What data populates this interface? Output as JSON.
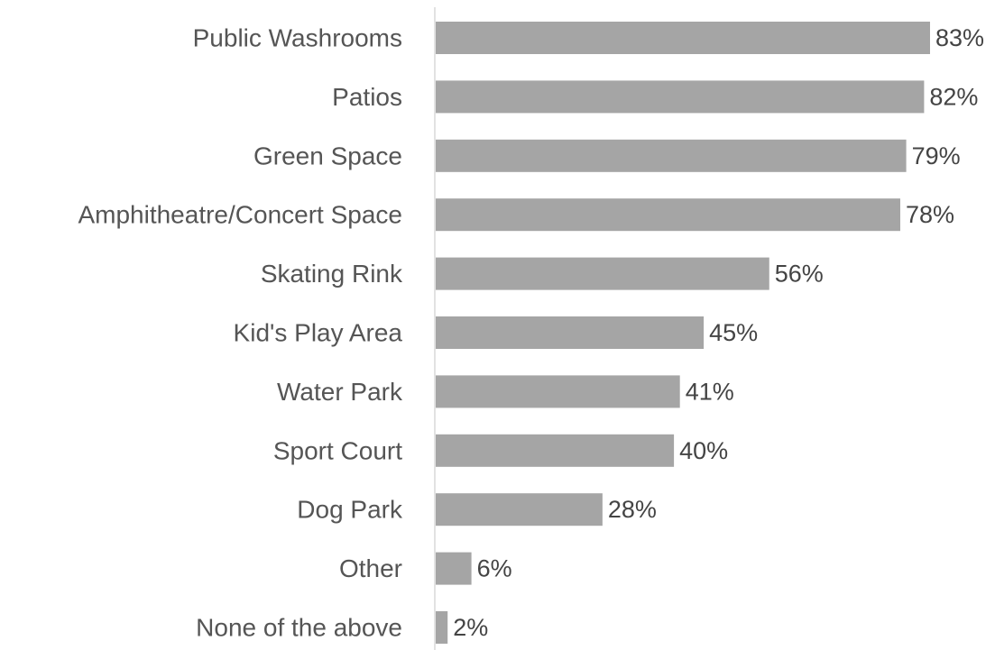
{
  "chart_data": {
    "type": "bar",
    "orientation": "horizontal",
    "title": "",
    "xlabel": "",
    "ylabel": "",
    "categories": [
      "Public Washrooms",
      "Patios",
      "Green Space",
      "Amphitheatre/Concert Space",
      "Skating Rink",
      "Kid's Play Area",
      "Water Park",
      "Sport Court",
      "Dog Park",
      "Other",
      "None of the above"
    ],
    "values": [
      83,
      82,
      79,
      78,
      56,
      45,
      41,
      40,
      28,
      6,
      2
    ],
    "value_labels": [
      "83%",
      "82%",
      "79%",
      "78%",
      "56%",
      "45%",
      "41%",
      "40%",
      "28%",
      "6%",
      "2%"
    ],
    "xlim": [
      0,
      100
    ],
    "grid": false,
    "legend": "none",
    "bar_color": "#a5a5a5",
    "axis_color": "#d9d9d9"
  }
}
